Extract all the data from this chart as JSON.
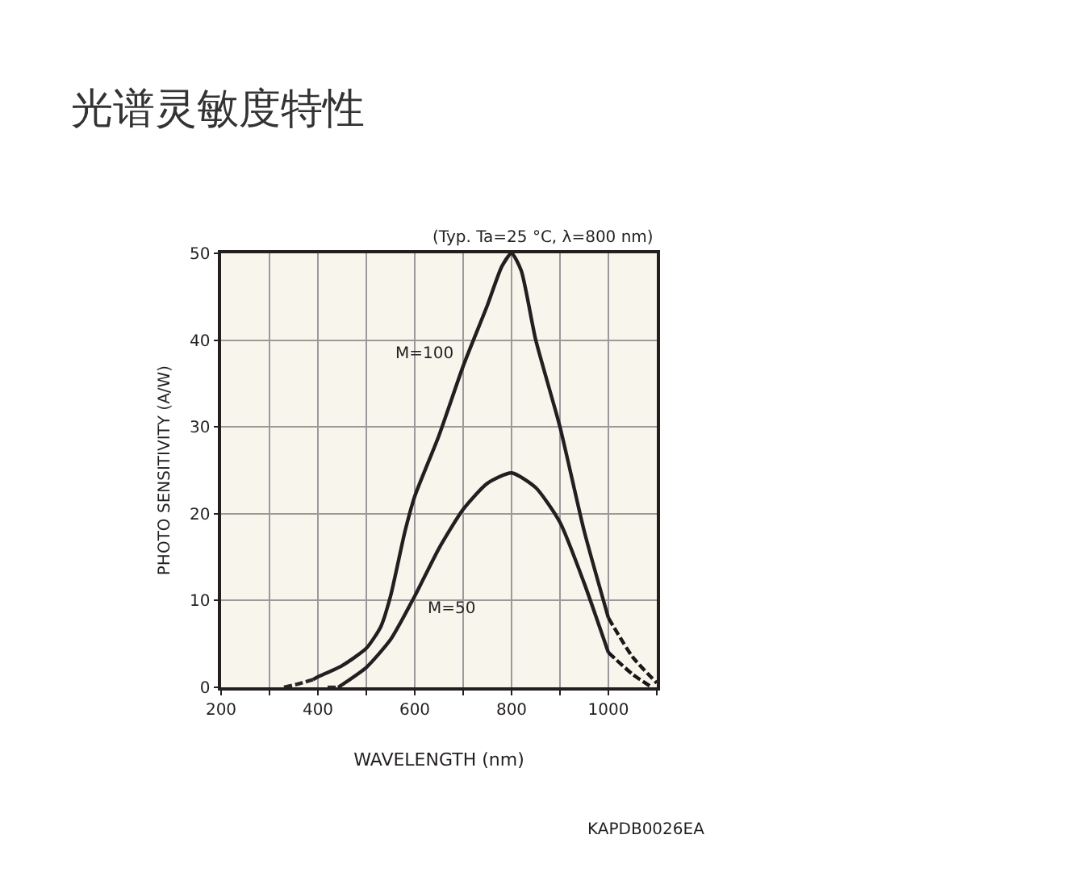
{
  "chart_data": {
    "type": "line",
    "title": "光谱灵敏度特性",
    "xlabel": "WAVELENGTH (nm)",
    "ylabel": "PHOTO SENSITIVITY (A/W)",
    "xlim": [
      200,
      1100
    ],
    "ylim": [
      0,
      50
    ],
    "xticks": [
      200,
      {
        "value": 300,
        "label": null
      },
      400,
      {
        "value": 500,
        "label": null
      },
      600,
      {
        "value": 700,
        "label": null
      },
      800,
      {
        "value": 900,
        "label": null
      },
      1000,
      {
        "value": 1100,
        "label": null
      }
    ],
    "yticks": [
      0,
      10,
      20,
      30,
      40,
      50
    ],
    "grid": true,
    "legend": false,
    "marker": "none",
    "series": [
      {
        "name": "M=100",
        "color": "#231f20",
        "line_style": "solid",
        "x": [
          390,
          400,
          450,
          500,
          530,
          550,
          580,
          600,
          650,
          700,
          750,
          780,
          800,
          820,
          850,
          900,
          950,
          1000
        ],
        "values": [
          0.9,
          1.2,
          2.5,
          4.5,
          7,
          10.5,
          18,
          22,
          29,
          37,
          44,
          48.5,
          50,
          48,
          40,
          30,
          18,
          8
        ]
      },
      {
        "name": "M=50",
        "color": "#231f20",
        "line_style": "solid",
        "x": [
          442,
          450,
          500,
          550,
          600,
          650,
          700,
          750,
          800,
          850,
          900,
          950,
          1000
        ],
        "values": [
          0,
          0.3,
          2.3,
          5.5,
          10.5,
          16,
          20.5,
          23.5,
          24.7,
          23,
          19,
          12,
          4
        ]
      },
      {
        "color": "#2a2526",
        "line_style": "dashed",
        "x": [
          330,
          360,
          390
        ],
        "values": [
          0,
          0.4,
          0.9
        ]
      },
      {
        "color": "#1c1819",
        "line_style": "dashed",
        "x": [
          1000,
          1050,
          1100
        ],
        "values": [
          8,
          3.5,
          0.5
        ]
      },
      {
        "color": "#2d2728",
        "line_style": "dashed",
        "x": [
          420,
          442
        ],
        "values": [
          0,
          0
        ]
      },
      {
        "color": "#191516",
        "line_style": "dashed",
        "x": [
          1000,
          1050,
          1090
        ],
        "values": [
          4,
          1.5,
          0
        ]
      }
    ],
    "annotations": [
      "(Typ. Ta=25 °C, λ=800 nm)",
      "KAPDB0026EA"
    ]
  }
}
